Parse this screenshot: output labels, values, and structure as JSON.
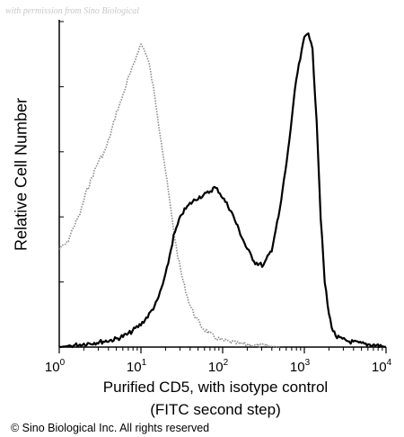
{
  "watermark": "with permission from Sino Biological",
  "copyright": "© Sino Biological Inc. All rights reserved",
  "chart_data": {
    "type": "area",
    "xlabel_line1": "Purified CD5, with isotype control",
    "xlabel_line2": "(FITC second step)",
    "ylabel": "Relative Cell Number",
    "xscale": "log",
    "xlim": [
      1,
      10000
    ],
    "x_ticks": [
      {
        "base": "10",
        "exp": "0",
        "value": 1
      },
      {
        "base": "10",
        "exp": "1",
        "value": 10
      },
      {
        "base": "10",
        "exp": "2",
        "value": 100
      },
      {
        "base": "10",
        "exp": "3",
        "value": 1000
      },
      {
        "base": "10",
        "exp": "4",
        "value": 10000
      }
    ],
    "ylim": [
      0,
      100
    ],
    "y_ticks": [
      0,
      20,
      40,
      60,
      80,
      100
    ],
    "series": [
      {
        "style": "gray-dotted",
        "color": "#8a8a8a",
        "x": [
          1.0,
          1.1,
          1.25,
          1.5,
          1.8,
          2.1,
          2.5,
          3.0,
          3.6,
          4.2,
          5.0,
          5.6,
          6.3,
          7.1,
          8.0,
          8.9,
          10.0,
          11.2,
          12.6,
          14.1,
          15.8,
          17.8,
          20.0,
          22.4,
          25.1,
          28.2,
          31.6,
          35.5,
          39.8,
          44.7,
          50.1,
          56.2,
          63.1,
          70.8,
          79.4,
          100,
          126,
          158,
          200,
          251,
          316,
          398,
          501
        ],
        "y": [
          30,
          31,
          32,
          37,
          41,
          47,
          52,
          57,
          60,
          65,
          72,
          75,
          79,
          83,
          86,
          90,
          93,
          91,
          87,
          80,
          72,
          63,
          54,
          45,
          36,
          28,
          22,
          17,
          13,
          10,
          8,
          6,
          5,
          4,
          3,
          2,
          1.5,
          1,
          0.8,
          0.5,
          0.4,
          0.2,
          0
        ]
      },
      {
        "style": "black-solid",
        "color": "#000000",
        "x": [
          1.0,
          1.5,
          2.0,
          3.0,
          4.0,
          5.0,
          7.0,
          10.0,
          12.6,
          15.8,
          20.0,
          25.1,
          31.6,
          39.8,
          50.1,
          63.1,
          70.8,
          79.4,
          89.1,
          100,
          126,
          158,
          200,
          251,
          316,
          398,
          501,
          631,
          794,
          1000,
          1122,
          1259,
          1413,
          1585,
          1778,
          2000,
          2239,
          2512,
          3162,
          3981,
          5012,
          6310,
          7943,
          10000
        ],
        "y": [
          0,
          0.5,
          1,
          1.5,
          2,
          2.5,
          4,
          7,
          10,
          14,
          22,
          34,
          41,
          44,
          46,
          47,
          48,
          49,
          48,
          46,
          42,
          36,
          30,
          26,
          25,
          30,
          42,
          60,
          82,
          95,
          97,
          91,
          70,
          40,
          20,
          10,
          5,
          3,
          2,
          1.5,
          1,
          0.8,
          0.5,
          0
        ]
      }
    ]
  }
}
